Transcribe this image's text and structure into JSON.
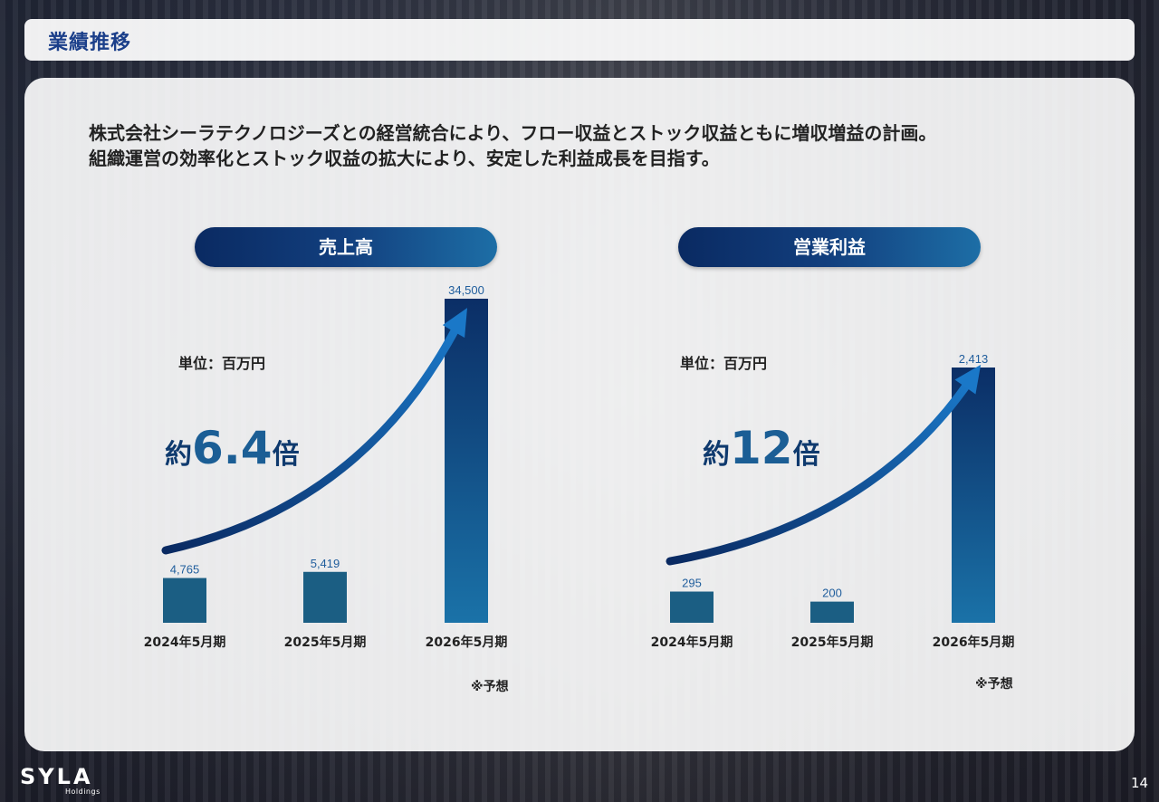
{
  "header": {
    "title": "業績推移"
  },
  "intro": {
    "line1": "株式会社シーラテクノロジーズとの経営統合により、フロー収益とストック収益ともに増収増益の計画。",
    "line2": "組織運営の効率化とストック収益の拡大により、安定した利益成長を目指す。"
  },
  "colors": {
    "bar": "#1b5e83",
    "bar_highlight_top": "#0b2e66",
    "bar_highlight_bottom": "#1a72a8",
    "value_label": "#1f5d9c",
    "multiplier": "#0f3a6e"
  },
  "chart_data": [
    {
      "type": "bar",
      "title": "売上高",
      "unit_label": "単位：百万円",
      "categories": [
        "2024年5月期",
        "2025年5月期",
        "2026年5月期"
      ],
      "values": [
        4765,
        5419,
        34500
      ],
      "value_labels": [
        "4,765",
        "5,419",
        "34,500"
      ],
      "multiplier": {
        "prefix": "約",
        "number": "6.4",
        "suffix": "倍"
      },
      "note": "※予想"
    },
    {
      "type": "bar",
      "title": "営業利益",
      "unit_label": "単位：百万円",
      "categories": [
        "2024年5月期",
        "2025年5月期",
        "2026年5月期"
      ],
      "values": [
        295,
        200,
        2413
      ],
      "value_labels": [
        "295",
        "200",
        "2,413"
      ],
      "multiplier": {
        "prefix": "約",
        "number": "12",
        "suffix": "倍"
      },
      "note": "※予想"
    }
  ],
  "footer": {
    "logo": "SYLA",
    "logo_sub": "Holdings",
    "page_number": "14"
  }
}
